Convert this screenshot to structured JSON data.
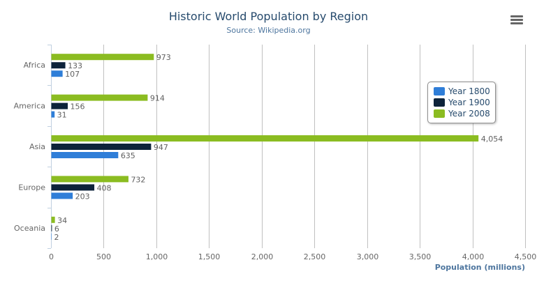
{
  "chart_data": {
    "type": "bar",
    "orientation": "horizontal",
    "title": "Historic World Population by Region",
    "subtitle": "Source: Wikipedia.org",
    "categories": [
      "Africa",
      "America",
      "Asia",
      "Europe",
      "Oceania"
    ],
    "series": [
      {
        "name": "Year 1800",
        "color": "#2f7ed8",
        "values": [
          107,
          31,
          635,
          203,
          2
        ]
      },
      {
        "name": "Year 1900",
        "color": "#0d233a",
        "values": [
          133,
          156,
          947,
          408,
          6
        ]
      },
      {
        "name": "Year 2008",
        "color": "#8bbc21",
        "values": [
          973,
          914,
          4054,
          732,
          34
        ]
      }
    ],
    "data_labels": [
      [
        "107",
        "31",
        "635",
        "203",
        "2"
      ],
      [
        "133",
        "156",
        "947",
        "408",
        "6"
      ],
      [
        "973",
        "914",
        "4,054",
        "732",
        "34"
      ]
    ],
    "xlabel": "Population (millions)",
    "ylabel": "",
    "xlim": [
      0,
      4500
    ],
    "xticks": [
      "0",
      "500",
      "1,000",
      "1,500",
      "2,000",
      "2,500",
      "3,000",
      "3,500",
      "4,000",
      "4,500"
    ],
    "grid": true,
    "legend_position": "right"
  },
  "menu_icon": "hamburger-menu-icon"
}
